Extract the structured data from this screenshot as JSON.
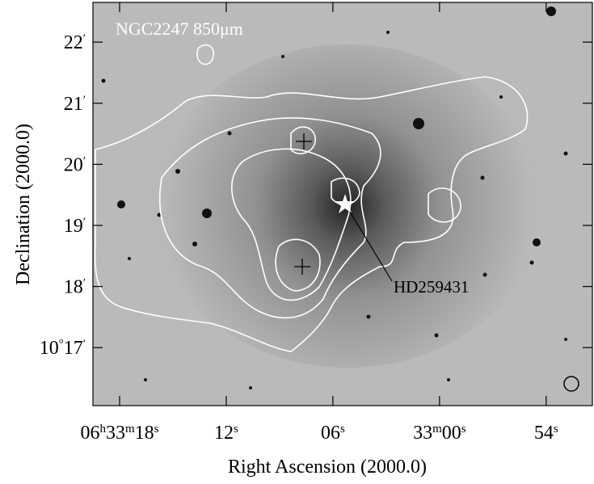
{
  "chart_data": {
    "type": "image",
    "title": "NGC2247 850μm",
    "annotation": "HD259431",
    "xlabel": "Right Ascension (2000.0)",
    "ylabel": "Declination (2000.0)",
    "xlim": [
      23599.5,
      23571.4
    ],
    "xticks": [
      {
        "value": 23598,
        "label": "06h33m18s"
      },
      {
        "value": 23592,
        "label": "12s"
      },
      {
        "value": 23586,
        "label": "06s"
      },
      {
        "value": 23580,
        "label": "33m00s"
      },
      {
        "value": 23574,
        "label": "54s"
      }
    ],
    "ylim": [
      16.05,
      22.65
    ],
    "yticks": [
      {
        "value": 17,
        "label": "10°17′"
      },
      {
        "value": 18,
        "label": "18′"
      },
      {
        "value": 19,
        "label": "19′"
      },
      {
        "value": 20,
        "label": "20′"
      },
      {
        "value": 21,
        "label": "21′"
      },
      {
        "value": 22,
        "label": "22′"
      }
    ]
  }
}
